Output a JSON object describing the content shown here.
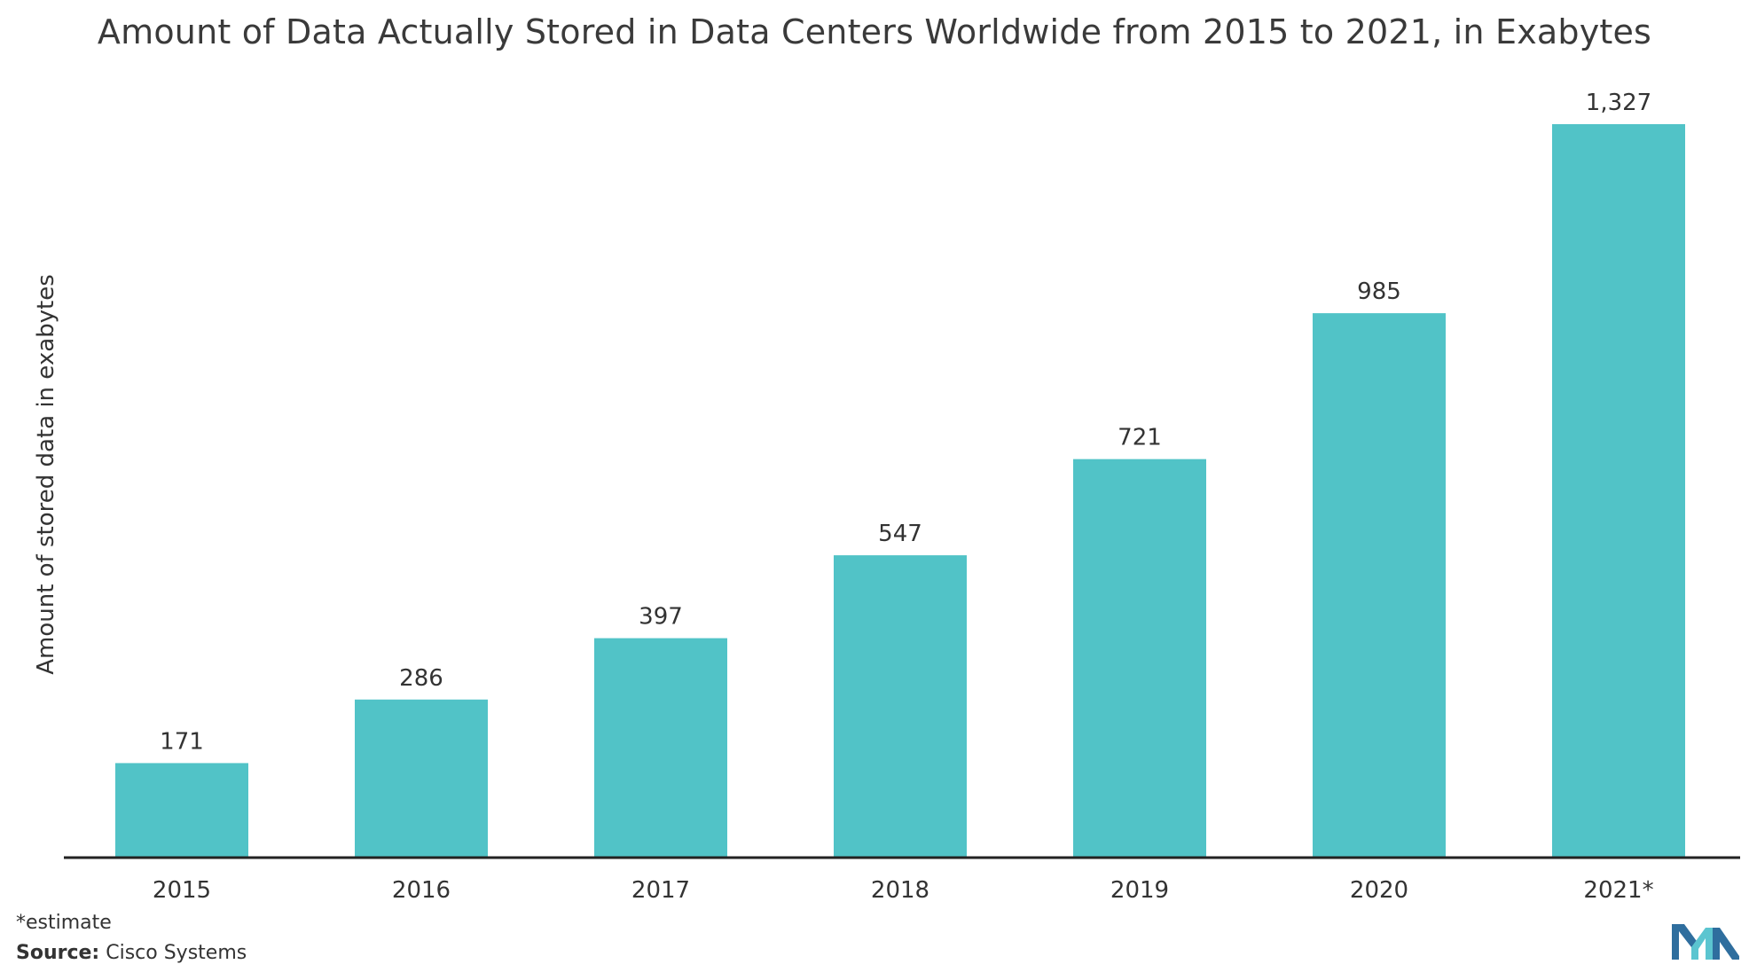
{
  "chart_data": {
    "type": "bar",
    "title": "Amount of Data Actually Stored in Data Centers Worldwide from 2015 to 2021, in Exabytes",
    "ylabel": "Amount of stored data in exabytes",
    "xlabel": "",
    "categories": [
      "2015",
      "2016",
      "2017",
      "2018",
      "2019",
      "2020",
      "2021*"
    ],
    "values": [
      171,
      286,
      397,
      547,
      721,
      985,
      1327
    ],
    "value_labels": [
      "171",
      "286",
      "397",
      "547",
      "721",
      "985",
      "1,327"
    ],
    "ylim": [
      0,
      1327
    ],
    "grid": false,
    "legend": "none",
    "bar_color": "#51c3c7",
    "axis_color": "#222222"
  },
  "footnote": "*estimate",
  "source": {
    "label": "Source:",
    "text": " Cisco Systems"
  },
  "logo": {
    "icon": "brand-logo-icon",
    "colors": [
      "#2f6e9e",
      "#5bc5d0"
    ]
  }
}
